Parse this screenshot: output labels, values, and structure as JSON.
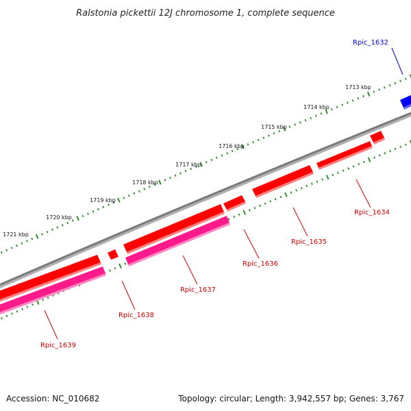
{
  "title": "Ralstonia pickettii 12J chromosome 1, complete sequence",
  "footer": {
    "accession": "Accession: NC_010682",
    "summary": "Topology: circular; Length: 3,942,557 bp; Genes: 3,767"
  },
  "colors": {
    "backbone": "#808080",
    "forward_gene": "#ff0000",
    "reverse_gene": "#ff1a8c",
    "highlight_gene": "#0000ff",
    "tick": "#2e8b2e",
    "label_red": "#cc0000",
    "label_blue": "#0000cc"
  },
  "scale_labels": [
    "1713 kbp",
    "1714 kbp",
    "1715 kbp",
    "1716 kbp",
    "1717 kbp",
    "1718 kbp",
    "1719 kbp",
    "1720 kbp",
    "1721 kbp"
  ],
  "genes": [
    {
      "label": "Rpic_1632",
      "color": "blue"
    },
    {
      "label": "Rpic_1634",
      "color": "red"
    },
    {
      "label": "Rpic_1635",
      "color": "red"
    },
    {
      "label": "Rpic_1636",
      "color": "red"
    },
    {
      "label": "Rpic_1637",
      "color": "red"
    },
    {
      "label": "Rpic_1638",
      "color": "red"
    },
    {
      "label": "Rpic_1639",
      "color": "red"
    }
  ]
}
